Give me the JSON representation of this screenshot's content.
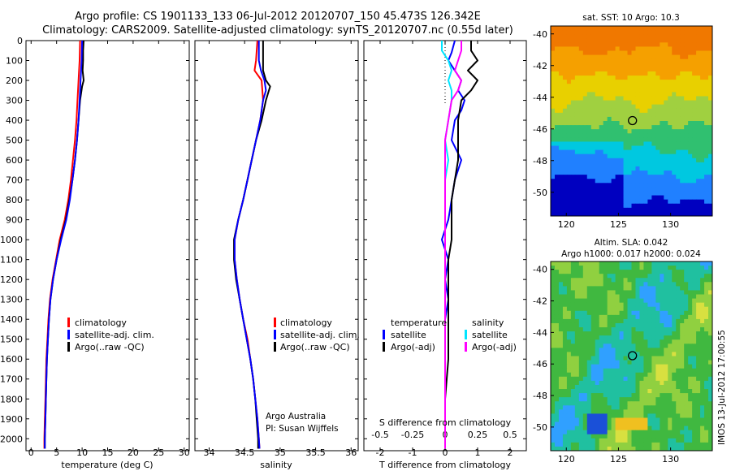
{
  "header": {
    "line1": "Argo profile: CS 1901133_133 06-Jul-2012 20120707_150 45.473S 126.342E",
    "line2": "Climatology: CARS2009. Satellite-adjusted climatology: synTS_20120707.nc (0.55d later)"
  },
  "side_text": "IMOS 13-Jul-2012 17:00:55",
  "colors": {
    "climatology": "#ff0000",
    "satellite": "#0000ff",
    "argo": "#000000",
    "satellite_s": "#00e5ff",
    "argo_s": "#ff00ff"
  },
  "chart_data": [
    {
      "type": "line",
      "panel": "temperature",
      "xlabel": "temperature (deg C)",
      "xlim": [
        -1,
        31
      ],
      "xticks": [
        0,
        5,
        10,
        15,
        20,
        25,
        30
      ],
      "ylim": [
        2060,
        0
      ],
      "yticks": [
        0,
        100,
        200,
        300,
        400,
        500,
        600,
        700,
        800,
        900,
        1000,
        1100,
        1200,
        1300,
        1400,
        1500,
        1600,
        1700,
        1800,
        1900,
        2000
      ],
      "legend": [
        "climatology",
        "satellite-adj. clim.",
        "Argo(..raw -QC)"
      ],
      "series": [
        {
          "name": "climatology",
          "color": "#ff0000",
          "width": 2,
          "points": [
            [
              9.6,
              0
            ],
            [
              9.5,
              100
            ],
            [
              9.3,
              200
            ],
            [
              9.1,
              300
            ],
            [
              8.9,
              400
            ],
            [
              8.6,
              500
            ],
            [
              8.2,
              600
            ],
            [
              7.8,
              700
            ],
            [
              7.3,
              800
            ],
            [
              6.6,
              900
            ],
            [
              5.6,
              1000
            ],
            [
              4.9,
              1100
            ],
            [
              4.2,
              1200
            ],
            [
              3.7,
              1300
            ],
            [
              3.4,
              1400
            ],
            [
              3.2,
              1500
            ],
            [
              3.0,
              1600
            ],
            [
              2.9,
              1700
            ],
            [
              2.8,
              1800
            ],
            [
              2.7,
              1900
            ],
            [
              2.6,
              2000
            ],
            [
              2.6,
              2050
            ]
          ]
        },
        {
          "name": "Argo(..raw -QC)",
          "color": "#000000",
          "width": 2,
          "points": [
            [
              10.3,
              0
            ],
            [
              10.2,
              50
            ],
            [
              10.2,
              100
            ],
            [
              10.1,
              150
            ],
            [
              10.3,
              200
            ],
            [
              10.0,
              230
            ],
            [
              9.6,
              300
            ],
            [
              9.3,
              400
            ],
            [
              9.0,
              500
            ],
            [
              8.6,
              600
            ],
            [
              8.1,
              700
            ],
            [
              7.5,
              800
            ],
            [
              6.8,
              900
            ],
            [
              5.8,
              1000
            ],
            [
              5.0,
              1100
            ],
            [
              4.3,
              1200
            ],
            [
              3.8,
              1300
            ],
            [
              3.5,
              1400
            ],
            [
              3.3,
              1500
            ],
            [
              3.1,
              1600
            ],
            [
              3.0,
              1700
            ],
            [
              2.9,
              1800
            ],
            [
              2.8,
              1900
            ],
            [
              2.7,
              2000
            ],
            [
              2.7,
              2050
            ]
          ]
        },
        {
          "name": "satellite-adj. clim.",
          "color": "#0000ff",
          "width": 2,
          "points": [
            [
              10.0,
              0
            ],
            [
              9.9,
              100
            ],
            [
              9.7,
              200
            ],
            [
              9.5,
              300
            ],
            [
              9.3,
              400
            ],
            [
              9.0,
              500
            ],
            [
              8.6,
              600
            ],
            [
              8.1,
              700
            ],
            [
              7.6,
              800
            ],
            [
              6.9,
              900
            ],
            [
              5.9,
              1000
            ],
            [
              5.0,
              1100
            ],
            [
              4.3,
              1200
            ],
            [
              3.8,
              1300
            ],
            [
              3.5,
              1400
            ],
            [
              3.3,
              1500
            ],
            [
              3.1,
              1600
            ],
            [
              3.0,
              1700
            ],
            [
              2.9,
              1800
            ],
            [
              2.8,
              1900
            ],
            [
              2.7,
              2000
            ],
            [
              2.7,
              2050
            ]
          ]
        }
      ]
    },
    {
      "type": "line",
      "panel": "salinity",
      "xlabel": "salinity",
      "xlim": [
        33.8,
        36.1
      ],
      "xticks": [
        34,
        34.5,
        35,
        35.5,
        36
      ],
      "ylim": [
        2060,
        0
      ],
      "legend": [
        "climatology",
        "satellite-adj. clim.",
        "Argo(..raw -QC)"
      ],
      "annotation": [
        "Argo Australia",
        "PI: Susan Wijffels"
      ],
      "series": [
        {
          "name": "climatology",
          "color": "#ff0000",
          "width": 2,
          "points": [
            [
              34.68,
              0
            ],
            [
              34.66,
              100
            ],
            [
              34.64,
              150
            ],
            [
              34.74,
              200
            ],
            [
              34.76,
              300
            ],
            [
              34.72,
              400
            ],
            [
              34.66,
              500
            ],
            [
              34.6,
              600
            ],
            [
              34.54,
              700
            ],
            [
              34.48,
              800
            ],
            [
              34.41,
              900
            ],
            [
              34.36,
              1000
            ],
            [
              34.36,
              1100
            ],
            [
              34.39,
              1200
            ],
            [
              34.43,
              1300
            ],
            [
              34.48,
              1400
            ],
            [
              34.54,
              1500
            ],
            [
              34.58,
              1600
            ],
            [
              34.62,
              1700
            ],
            [
              34.65,
              1800
            ],
            [
              34.68,
              1900
            ],
            [
              34.7,
              2000
            ],
            [
              34.71,
              2050
            ]
          ]
        },
        {
          "name": "Argo(..raw -QC)",
          "color": "#000000",
          "width": 2,
          "points": [
            [
              34.76,
              0
            ],
            [
              34.76,
              100
            ],
            [
              34.76,
              150
            ],
            [
              34.8,
              200
            ],
            [
              34.86,
              230
            ],
            [
              34.8,
              300
            ],
            [
              34.74,
              400
            ],
            [
              34.66,
              500
            ],
            [
              34.6,
              600
            ],
            [
              34.54,
              700
            ],
            [
              34.48,
              800
            ],
            [
              34.41,
              900
            ],
            [
              34.35,
              1000
            ],
            [
              34.35,
              1100
            ],
            [
              34.38,
              1200
            ],
            [
              34.43,
              1300
            ],
            [
              34.48,
              1400
            ],
            [
              34.53,
              1500
            ],
            [
              34.58,
              1600
            ],
            [
              34.62,
              1700
            ],
            [
              34.65,
              1800
            ],
            [
              34.67,
              1900
            ],
            [
              34.69,
              2000
            ],
            [
              34.69,
              2050
            ]
          ]
        },
        {
          "name": "satellite-adj. clim.",
          "color": "#0000ff",
          "width": 2,
          "points": [
            [
              34.7,
              0
            ],
            [
              34.7,
              100
            ],
            [
              34.73,
              150
            ],
            [
              34.78,
              200
            ],
            [
              34.8,
              250
            ],
            [
              34.76,
              300
            ],
            [
              34.72,
              400
            ],
            [
              34.66,
              500
            ],
            [
              34.6,
              600
            ],
            [
              34.54,
              700
            ],
            [
              34.48,
              800
            ],
            [
              34.41,
              900
            ],
            [
              34.36,
              1000
            ],
            [
              34.36,
              1100
            ],
            [
              34.39,
              1200
            ],
            [
              34.43,
              1300
            ],
            [
              34.48,
              1400
            ],
            [
              34.53,
              1500
            ],
            [
              34.58,
              1600
            ],
            [
              34.62,
              1700
            ],
            [
              34.65,
              1800
            ],
            [
              34.68,
              1900
            ],
            [
              34.7,
              2000
            ],
            [
              34.71,
              2050
            ]
          ]
        }
      ]
    },
    {
      "type": "line",
      "panel": "difference",
      "xlabel": "T difference from climatology",
      "xlim": [
        -2.5,
        2.5
      ],
      "xticks": [
        -2,
        -1,
        0,
        1,
        2
      ],
      "sxlabel": "S difference from climatology",
      "sxticks": [
        "-0.5",
        "-0.25",
        "0",
        "0.25",
        "0.5"
      ],
      "sxtick_positions": [
        -2,
        -1,
        0,
        1,
        2
      ],
      "ylim": [
        2060,
        0
      ],
      "legend_t": {
        "title": "temperature",
        "items": [
          "satellite",
          "Argo(-adj)"
        ]
      },
      "legend_s": {
        "title": "salinity",
        "items": [
          "satellite",
          "Argo(-adj)"
        ]
      },
      "series": [
        {
          "name": "T satellite",
          "color": "#0000ff",
          "width": 2,
          "points": [
            [
              0.3,
              0
            ],
            [
              0.2,
              60
            ],
            [
              0.1,
              100
            ],
            [
              0.3,
              150
            ],
            [
              0.5,
              200
            ],
            [
              0.4,
              250
            ],
            [
              0.6,
              300
            ],
            [
              0.5,
              350
            ],
            [
              0.3,
              400
            ],
            [
              0.2,
              500
            ],
            [
              0.5,
              600
            ],
            [
              0.3,
              700
            ],
            [
              0.2,
              800
            ],
            [
              0.1,
              900
            ],
            [
              -0.1,
              1000
            ],
            [
              0.1,
              1100
            ],
            [
              0.0,
              1200
            ],
            [
              0.1,
              1300
            ],
            [
              0.0,
              1400
            ],
            [
              0.0,
              1600
            ],
            [
              0.0,
              2050
            ]
          ]
        },
        {
          "name": "T Argo(-adj)",
          "color": "#000000",
          "width": 2,
          "points": [
            [
              0.8,
              0
            ],
            [
              0.8,
              50
            ],
            [
              1.0,
              100
            ],
            [
              0.7,
              150
            ],
            [
              1.0,
              200
            ],
            [
              0.8,
              250
            ],
            [
              0.5,
              300
            ],
            [
              0.4,
              400
            ],
            [
              0.4,
              500
            ],
            [
              0.4,
              600
            ],
            [
              0.3,
              700
            ],
            [
              0.2,
              800
            ],
            [
              0.2,
              900
            ],
            [
              0.2,
              1000
            ],
            [
              0.1,
              1100
            ],
            [
              0.1,
              1200
            ],
            [
              0.1,
              1300
            ],
            [
              0.1,
              1400
            ],
            [
              0.1,
              1600
            ],
            [
              0.0,
              1800
            ],
            [
              0.0,
              2050
            ]
          ]
        },
        {
          "name": "S satellite",
          "color": "#00e5ff",
          "width": 2,
          "points": [
            [
              -0.1,
              0
            ],
            [
              -0.1,
              50
            ],
            [
              0.1,
              100
            ],
            [
              0.2,
              150
            ],
            [
              0.1,
              200
            ],
            [
              0.2,
              250
            ],
            [
              0.2,
              300
            ],
            [
              0.1,
              400
            ],
            [
              0.0,
              500
            ],
            [
              0.1,
              600
            ],
            [
              0.0,
              700
            ],
            [
              0.0,
              800
            ],
            [
              0.0,
              900
            ],
            [
              0.0,
              1000
            ],
            [
              0.0,
              1100
            ],
            [
              0.0,
              1200
            ],
            [
              0.0,
              1400
            ],
            [
              0.0,
              1600
            ],
            [
              0.0,
              2050
            ]
          ]
        },
        {
          "name": "S Argo(-adj)",
          "color": "#ff00ff",
          "width": 2,
          "points": [
            [
              0.5,
              0
            ],
            [
              0.5,
              50
            ],
            [
              0.4,
              100
            ],
            [
              0.3,
              150
            ],
            [
              0.5,
              200
            ],
            [
              0.4,
              250
            ],
            [
              0.2,
              300
            ],
            [
              0.1,
              400
            ],
            [
              0.0,
              500
            ],
            [
              0.0,
              600
            ],
            [
              0.0,
              700
            ],
            [
              0.0,
              800
            ],
            [
              0.0,
              900
            ],
            [
              0.0,
              1000
            ],
            [
              0.0,
              1100
            ],
            [
              0.0,
              1200
            ],
            [
              0.0,
              1400
            ],
            [
              0.0,
              1600
            ],
            [
              0.0,
              2050
            ]
          ]
        }
      ]
    },
    {
      "type": "heatmap",
      "panel": "sst_map",
      "title": "sat. SST: 10 Argo: 10.3",
      "xlim": [
        118.5,
        134
      ],
      "ylim": [
        -51.5,
        -39.5
      ],
      "xticks": [
        120,
        125,
        130
      ],
      "yticks": [
        -40,
        -42,
        -44,
        -46,
        -48,
        -50
      ],
      "marker": [
        126.342,
        -45.473
      ],
      "colors": [
        "#f07800",
        "#f5a000",
        "#e8d000",
        "#a0d040",
        "#30c070",
        "#00c8e0",
        "#2080ff",
        "#0000c0"
      ]
    },
    {
      "type": "heatmap",
      "panel": "sla_map",
      "title_lines": [
        "Altim. SLA: 0.042",
        "Argo h1000: 0.017 h2000: 0.024"
      ],
      "xlim": [
        118.5,
        134
      ],
      "ylim": [
        -51.5,
        -39.5
      ],
      "xticks": [
        120,
        125,
        130
      ],
      "yticks": [
        -40,
        -42,
        -44,
        -46,
        -48,
        -50
      ],
      "marker": [
        126.342,
        -45.473
      ],
      "colors": [
        "#1a50d8",
        "#30a0ff",
        "#20c0a0",
        "#40b840",
        "#90d040",
        "#d8e040",
        "#f0c020",
        "#f09000"
      ]
    }
  ]
}
